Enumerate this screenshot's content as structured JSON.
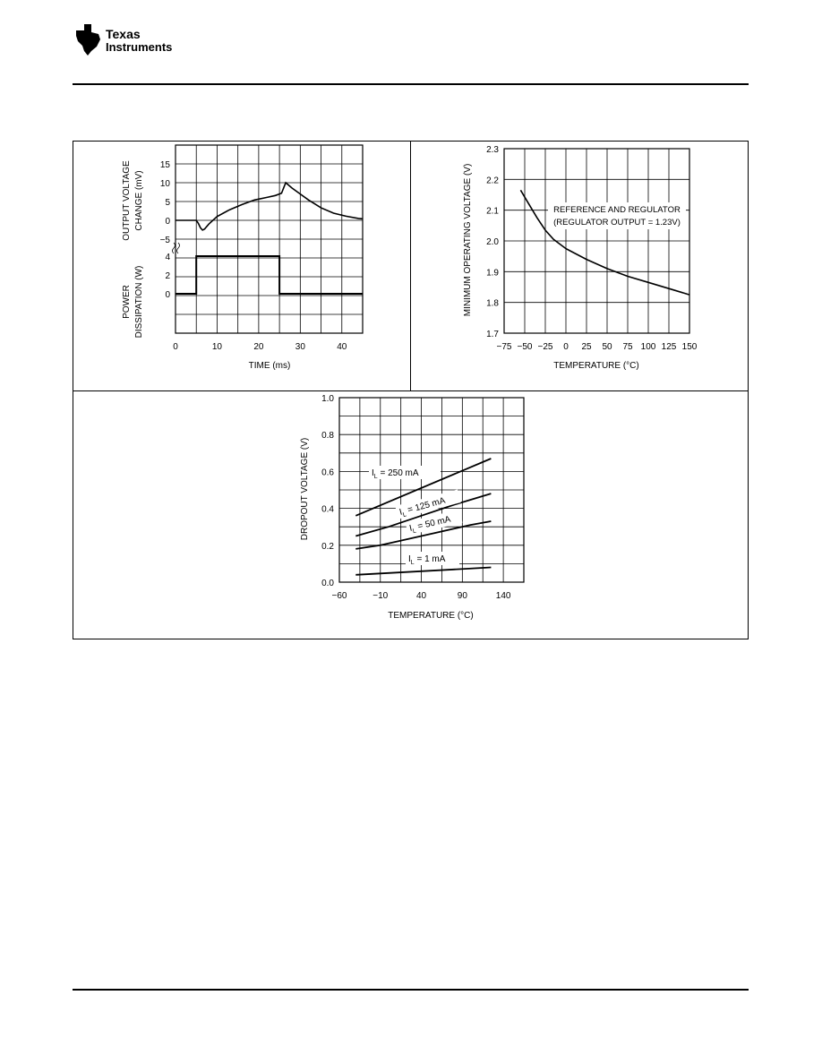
{
  "header": {
    "logo_line1": "Texas",
    "logo_line2": "Instruments"
  },
  "chart_data": [
    {
      "type": "line",
      "id": "transient",
      "title": "",
      "xlabel": "TIME (ms)",
      "x_ticks": [
        0,
        10,
        20,
        30,
        40
      ],
      "xlim": [
        0,
        45
      ],
      "top_panel": {
        "ylabel": [
          "OUTPUT VOLTAGE",
          "CHANGE (mV)"
        ],
        "y_ticks": [
          15,
          10,
          5,
          0,
          -5
        ],
        "ylim": [
          -5,
          20
        ],
        "series": [
          {
            "x": [
              0,
              5,
              5.5,
              6,
              6.5,
              7,
              8,
              10,
              13,
              16,
              19,
              22,
              24,
              25.5,
              26.5,
              28,
              30,
              32,
              35,
              38,
              41,
              44,
              45
            ],
            "y": [
              0,
              0,
              -0.8,
              -2,
              -2.6,
              -2.3,
              -1,
              1,
              2.8,
              4.2,
              5.4,
              6.1,
              6.6,
              7.2,
              10,
              8.6,
              7,
              5.4,
              3.3,
              1.9,
              1.1,
              0.5,
              0.4
            ]
          }
        ]
      },
      "bottom_panel": {
        "ylabel": [
          "POWER",
          "DISSIPATION (W)"
        ],
        "y_ticks": [
          4,
          2,
          0
        ],
        "ylim": [
          -6,
          4
        ],
        "series": [
          {
            "x": [
              0,
              5,
              5,
              25,
              25,
              45
            ],
            "y": [
              0,
              0,
              4,
              4,
              0,
              0
            ]
          }
        ]
      }
    },
    {
      "type": "line",
      "id": "min-operating-voltage",
      "title": "",
      "xlabel": "TEMPERATURE (°C)",
      "ylabel": "MINIMUM OPERATING VOLTAGE (V)",
      "x_ticks": [
        -75,
        -50,
        -25,
        0,
        25,
        50,
        75,
        100,
        125,
        150
      ],
      "y_ticks": [
        2.3,
        2.2,
        2.1,
        2.0,
        1.9,
        1.8,
        1.7
      ],
      "xlim": [
        -75,
        150
      ],
      "ylim": [
        1.7,
        2.3
      ],
      "annotation": [
        "REFERENCE AND REGULATOR",
        "(REGULATOR OUTPUT = 1.23V)"
      ],
      "series": [
        {
          "x": [
            -55,
            -45,
            -35,
            -25,
            -15,
            0,
            25,
            50,
            75,
            100,
            125,
            150
          ],
          "y": [
            2.165,
            2.12,
            2.075,
            2.035,
            2.005,
            1.975,
            1.94,
            1.91,
            1.885,
            1.865,
            1.845,
            1.825
          ]
        }
      ]
    },
    {
      "type": "line",
      "id": "dropout-voltage",
      "title": "",
      "xlabel": "TEMPERATURE (°C)",
      "ylabel": "DROPOUT VOLTAGE (V)",
      "x_ticks": [
        -60,
        -10,
        40,
        90,
        140
      ],
      "y_ticks": [
        1.0,
        0.8,
        0.6,
        0.4,
        0.2,
        0.0
      ],
      "xlim": [
        -60,
        165
      ],
      "ylim": [
        0,
        1.0
      ],
      "series": [
        {
          "name": "IL = 250 mA",
          "label_main": "I",
          "label_sub": "L",
          "label_rest": " = 250 mA",
          "x": [
            -40,
            125
          ],
          "y": [
            0.36,
            0.67
          ]
        },
        {
          "name": "IL = 125 mA",
          "label_main": "I",
          "label_sub": "L",
          "label_rest": " = 125 mA",
          "x": [
            -40,
            0,
            40,
            80,
            125
          ],
          "y": [
            0.25,
            0.3,
            0.36,
            0.42,
            0.48
          ]
        },
        {
          "name": "IL = 50 mA",
          "label_main": "I",
          "label_sub": "L",
          "label_rest": " = 50 mA",
          "x": [
            -40,
            -10,
            20,
            60,
            100,
            125
          ],
          "y": [
            0.18,
            0.2,
            0.23,
            0.27,
            0.31,
            0.33
          ]
        },
        {
          "name": "IL = 1 mA",
          "label_main": "I",
          "label_sub": "L",
          "label_rest": " = 1 mA",
          "x": [
            -40,
            125
          ],
          "y": [
            0.04,
            0.08
          ]
        }
      ]
    }
  ]
}
